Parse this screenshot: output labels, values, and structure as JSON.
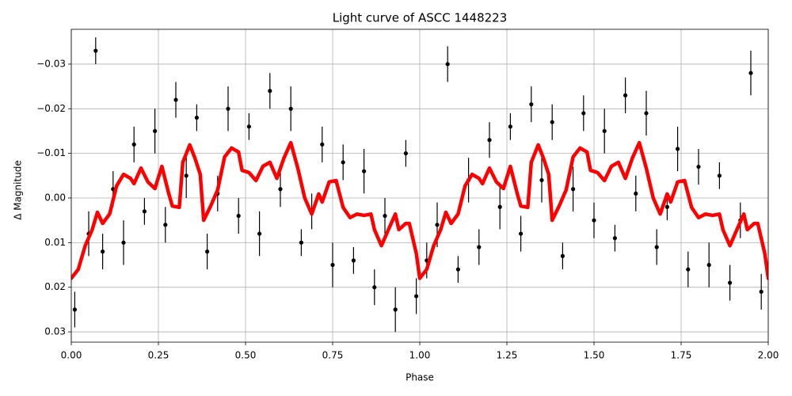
{
  "chart_data": {
    "type": "scatter",
    "title": "Light curve of ASCC 1448223",
    "x_label": "Phase",
    "y_label": "Δ Magnitude",
    "xlim": [
      0,
      2
    ],
    "ylim": [
      -0.0378,
      0.0323
    ],
    "invert_y": true,
    "grid": true,
    "xticks": [
      {
        "value": 0,
        "label": "0.00"
      },
      {
        "value": 0.25,
        "label": "0.25"
      },
      {
        "value": 0.5,
        "label": "0.50"
      },
      {
        "value": 0.75,
        "label": "0.75"
      },
      {
        "value": 1,
        "label": "1.00"
      },
      {
        "value": 1.25,
        "label": "1.25"
      },
      {
        "value": 1.5,
        "label": "1.50"
      },
      {
        "value": 1.75,
        "label": "1.75"
      },
      {
        "value": 2,
        "label": "2.00"
      }
    ],
    "yticks": [
      {
        "value": -0.03,
        "label": "−0.03"
      },
      {
        "value": -0.02,
        "label": "−0.02"
      },
      {
        "value": -0.01,
        "label": "−0.01"
      },
      {
        "value": 0,
        "label": "0.00"
      },
      {
        "value": 0.01,
        "label": "0.01"
      },
      {
        "value": 0.02,
        "label": "0.02"
      },
      {
        "value": 0.03,
        "label": "0.03"
      }
    ],
    "series": [
      {
        "kind": "points",
        "color": "#000000",
        "x": [
          0.01,
          0.05,
          0.07,
          0.09,
          0.12,
          0.15,
          0.18,
          0.21,
          0.24,
          0.27,
          0.3,
          0.33,
          0.36,
          0.39,
          0.42,
          0.45,
          0.48,
          0.51,
          0.54,
          0.57,
          0.6,
          0.63,
          0.66,
          0.69,
          0.72,
          0.75,
          0.78,
          0.81,
          0.84,
          0.87,
          0.9,
          0.93,
          0.96,
          0.99,
          1.02,
          1.05,
          1.08,
          1.11,
          1.14,
          1.17,
          1.2,
          1.23,
          1.26,
          1.29,
          1.32,
          1.35,
          1.38,
          1.41,
          1.44,
          1.47,
          1.5,
          1.53,
          1.56,
          1.59,
          1.62,
          1.65,
          1.68,
          1.71,
          1.74,
          1.77,
          1.8,
          1.83,
          1.86,
          1.89,
          1.92,
          1.95,
          1.98
        ],
        "values": [
          0.025,
          0.008,
          -0.033,
          0.012,
          -0.002,
          0.01,
          -0.012,
          0.003,
          -0.015,
          0.006,
          -0.022,
          -0.005,
          -0.018,
          0.012,
          -0.001,
          -0.02,
          0.004,
          -0.016,
          0.008,
          -0.024,
          -0.002,
          -0.02,
          0.01,
          0.003,
          -0.012,
          0.015,
          -0.008,
          0.014,
          -0.006,
          0.02,
          0.004,
          0.025,
          -0.01,
          0.022,
          0.014,
          0.006,
          -0.03,
          0.016,
          -0.004,
          0.011,
          -0.013,
          0.002,
          -0.016,
          0.008,
          -0.021,
          -0.004,
          -0.017,
          0.013,
          -0.002,
          -0.019,
          0.005,
          -0.015,
          0.009,
          -0.023,
          -0.001,
          -0.019,
          0.011,
          0.002,
          -0.011,
          0.016,
          -0.007,
          0.015,
          -0.005,
          0.019,
          0.005,
          -0.028,
          0.021
        ],
        "errors": [
          0.004,
          0.005,
          0.003,
          0.004,
          0.004,
          0.005,
          0.004,
          0.003,
          0.005,
          0.004,
          0.004,
          0.005,
          0.003,
          0.004,
          0.004,
          0.005,
          0.004,
          0.003,
          0.005,
          0.004,
          0.004,
          0.005,
          0.003,
          0.004,
          0.004,
          0.005,
          0.004,
          0.003,
          0.005,
          0.004,
          0.004,
          0.005,
          0.003,
          0.004,
          0.004,
          0.005,
          0.004,
          0.003,
          0.005,
          0.004,
          0.004,
          0.005,
          0.003,
          0.004,
          0.004,
          0.005,
          0.004,
          0.003,
          0.005,
          0.004,
          0.004,
          0.005,
          0.003,
          0.004,
          0.004,
          0.005,
          0.004,
          0.003,
          0.005,
          0.004,
          0.004,
          0.005,
          0.003,
          0.004,
          0.004,
          0.005,
          0.004
        ]
      },
      {
        "kind": "line",
        "color": "#ff0000",
        "x": [
          0,
          0.02,
          0.04,
          0.06,
          0.075,
          0.09,
          0.11,
          0.13,
          0.15,
          0.17,
          0.18,
          0.2,
          0.22,
          0.24,
          0.26,
          0.28,
          0.29,
          0.31,
          0.32,
          0.34,
          0.355,
          0.37,
          0.38,
          0.4,
          0.42,
          0.44,
          0.46,
          0.48,
          0.49,
          0.51,
          0.53,
          0.55,
          0.57,
          0.59,
          0.61,
          0.63,
          0.65,
          0.67,
          0.69,
          0.71,
          0.72,
          0.74,
          0.76,
          0.78,
          0.8,
          0.82,
          0.84,
          0.86,
          0.87,
          0.89,
          0.91,
          0.93,
          0.94,
          0.96,
          0.97,
          0.99,
          1.0,
          1.02,
          1.04,
          1.06,
          1.075,
          1.09,
          1.11,
          1.13,
          1.15,
          1.17,
          1.18,
          1.2,
          1.22,
          1.24,
          1.26,
          1.28,
          1.29,
          1.31,
          1.32,
          1.34,
          1.355,
          1.37,
          1.38,
          1.4,
          1.42,
          1.44,
          1.46,
          1.48,
          1.49,
          1.51,
          1.53,
          1.55,
          1.57,
          1.59,
          1.61,
          1.63,
          1.65,
          1.67,
          1.69,
          1.71,
          1.72,
          1.74,
          1.76,
          1.78,
          1.8,
          1.82,
          1.84,
          1.86,
          1.87,
          1.89,
          1.91,
          1.93,
          1.94,
          1.96,
          1.97,
          1.99,
          2.0
        ],
        "values": [
          0.018,
          0.016,
          0.0107,
          0.0071,
          0.0032,
          0.0057,
          0.0036,
          -0.0027,
          -0.0053,
          -0.0044,
          -0.0032,
          -0.0067,
          -0.0036,
          -0.0021,
          -0.0071,
          -0.0009,
          0.0018,
          0.0021,
          -0.008,
          -0.0119,
          -0.0089,
          -0.0053,
          0.005,
          0.0018,
          -0.0018,
          -0.0092,
          -0.0112,
          -0.0103,
          -0.0062,
          -0.0057,
          -0.0039,
          -0.0071,
          -0.008,
          -0.0044,
          -0.0089,
          -0.0124,
          -0.0067,
          0,
          0.0036,
          -0.0009,
          0.0009,
          -0.0036,
          -0.0039,
          0.0021,
          0.0044,
          0.0036,
          0.0039,
          0.0036,
          0.0071,
          0.0107,
          0.0071,
          0.0036,
          0.0071,
          0.0057,
          0.0057,
          0.0124,
          0.018,
          0.016,
          0.0107,
          0.0071,
          0.0032,
          0.0057,
          0.0036,
          -0.0027,
          -0.0053,
          -0.0044,
          -0.0032,
          -0.0067,
          -0.0036,
          -0.0021,
          -0.0071,
          -0.0009,
          0.0018,
          0.0021,
          -0.008,
          -0.0119,
          -0.0089,
          -0.0053,
          0.005,
          0.0018,
          -0.0018,
          -0.0092,
          -0.0112,
          -0.0103,
          -0.0062,
          -0.0057,
          -0.0039,
          -0.0071,
          -0.008,
          -0.0044,
          -0.0089,
          -0.0124,
          -0.0067,
          0,
          0.0036,
          -0.0009,
          0.0009,
          -0.0036,
          -0.0039,
          0.0021,
          0.0044,
          0.0036,
          0.0039,
          0.0036,
          0.0071,
          0.0107,
          0.0071,
          0.0036,
          0.0071,
          0.0057,
          0.0057,
          0.0124,
          0.018
        ]
      }
    ]
  }
}
